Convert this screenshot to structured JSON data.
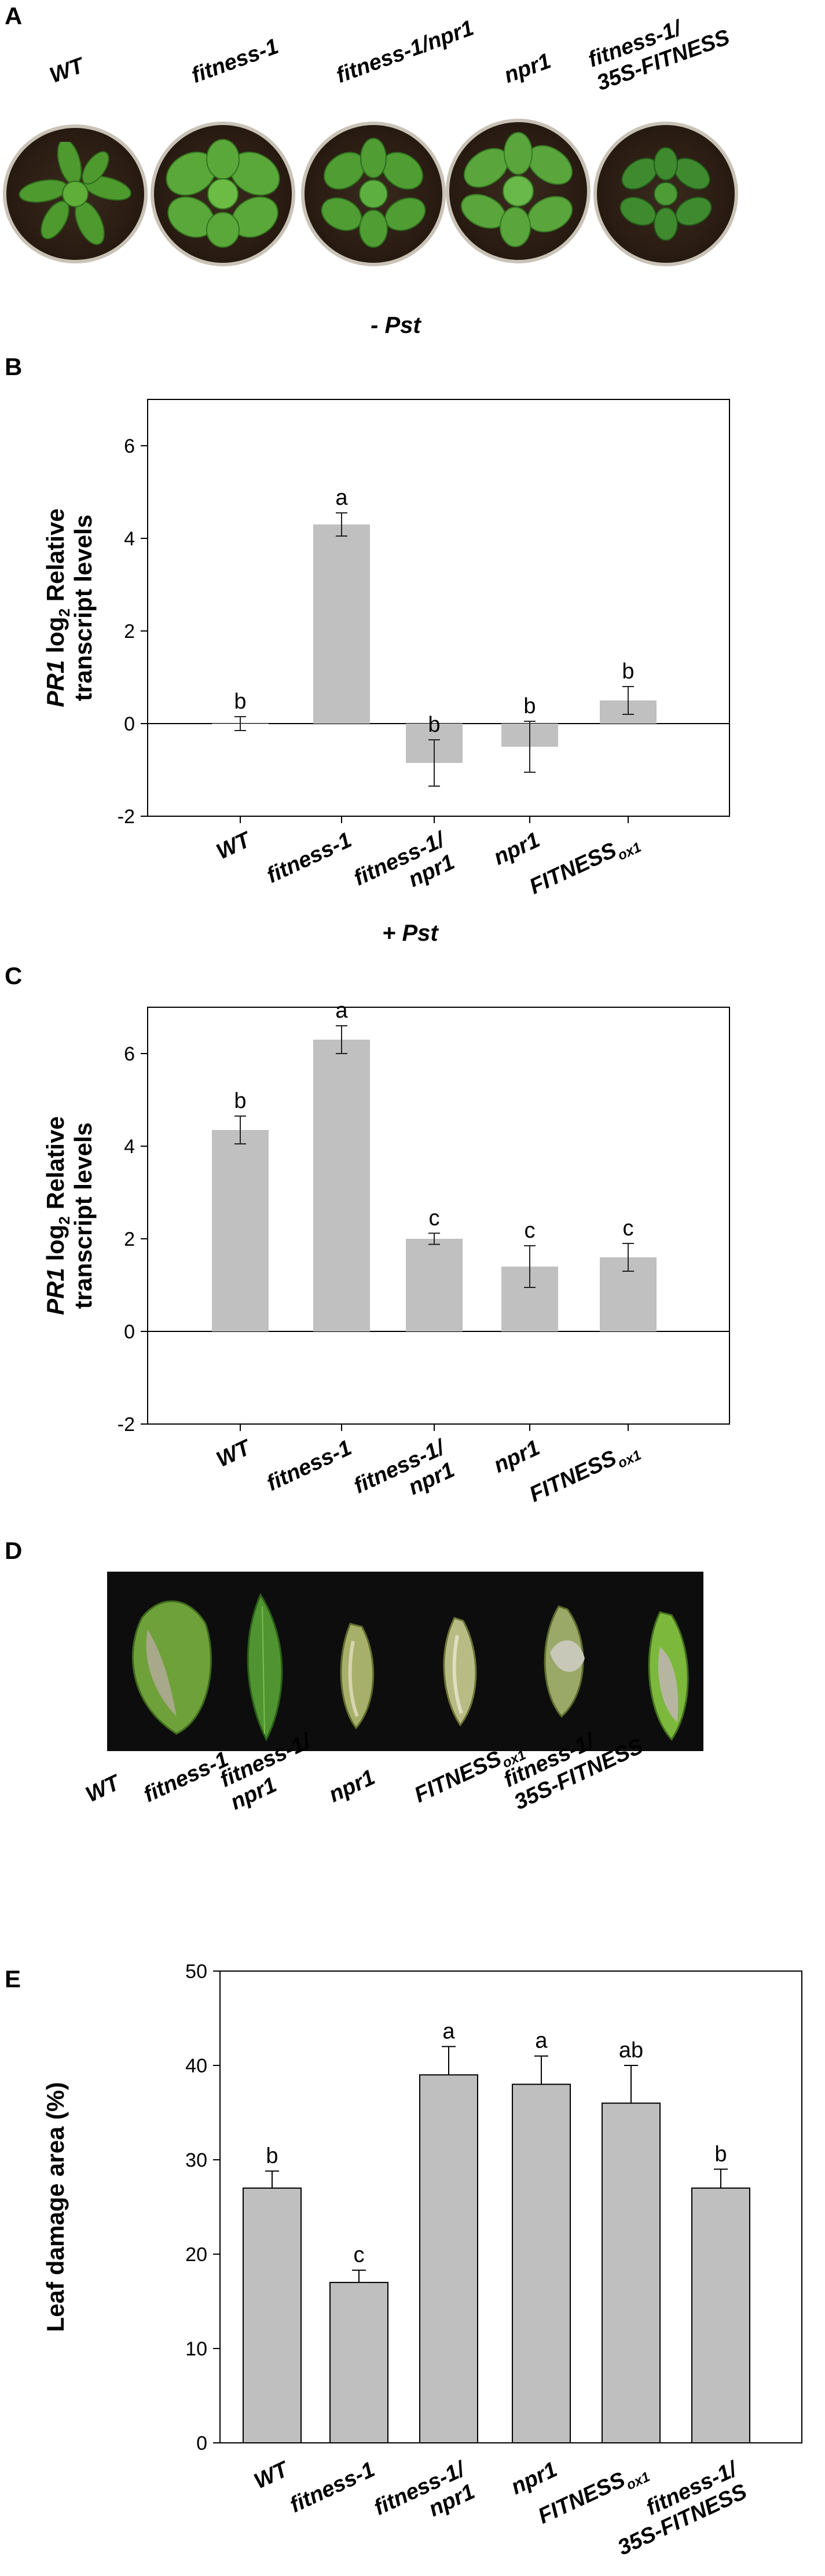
{
  "panel_a": {
    "label": "A",
    "genotypes": [
      {
        "name": "wt",
        "lines": [
          "WT"
        ]
      },
      {
        "name": "fitness-1",
        "lines": [
          "fitness-1"
        ]
      },
      {
        "name": "fitness-1-npr1",
        "lines": [
          "fitness-1/npr1"
        ]
      },
      {
        "name": "npr1",
        "lines": [
          "npr1"
        ]
      },
      {
        "name": "fitness-1-35s",
        "lines": [
          "fitness-1/",
          "35S-FITNESS"
        ]
      }
    ]
  },
  "panel_b": {
    "label": "B",
    "condition_prefix": "- ",
    "condition": "Pst",
    "ylabel_gene": "PR1",
    "ylabel_rest_1": " log",
    "ylabel_sub": "2",
    "ylabel_rest_2": " Relative",
    "ylabel_line2": "transcript levels",
    "chart_data": {
      "type": "bar",
      "categories": [
        "WT",
        "fitness-1",
        "fitness-1/npr1",
        "npr1",
        "FITNESSox1"
      ],
      "values": [
        0.0,
        4.3,
        -0.85,
        -0.5,
        0.5
      ],
      "errors": [
        0.15,
        0.25,
        0.5,
        0.55,
        0.3
      ],
      "letters": [
        "b",
        "a",
        "b",
        "b",
        "b"
      ],
      "ylim": [
        -2,
        7
      ],
      "yticks": [
        "-2",
        "0",
        "2",
        "4",
        "6"
      ]
    }
  },
  "panel_c": {
    "label": "C",
    "condition_prefix": "+ ",
    "condition": "Pst",
    "ylabel_gene": "PR1",
    "ylabel_rest_1": " log",
    "ylabel_sub": "2",
    "ylabel_rest_2": " Relative",
    "ylabel_line2": "transcript levels",
    "chart_data": {
      "type": "bar",
      "categories": [
        "WT",
        "fitness-1",
        "fitness-1/npr1",
        "npr1",
        "FITNESSox1"
      ],
      "values": [
        4.35,
        6.3,
        2.0,
        1.4,
        1.6
      ],
      "errors": [
        0.3,
        0.3,
        0.12,
        0.45,
        0.3
      ],
      "letters": [
        "b",
        "a",
        "c",
        "c",
        "c"
      ],
      "ylim": [
        -2,
        7
      ],
      "yticks": [
        "-2",
        "0",
        "2",
        "4",
        "6"
      ]
    }
  },
  "panel_d": {
    "label": "D",
    "genotypes": [
      {
        "name": "wt",
        "lines": [
          "WT"
        ],
        "sub": ""
      },
      {
        "name": "fitness-1",
        "lines": [
          "fitness-1"
        ],
        "sub": ""
      },
      {
        "name": "fitness-1-npr1",
        "lines": [
          "fitness-1/",
          "npr1"
        ],
        "sub": ""
      },
      {
        "name": "npr1",
        "lines": [
          "npr1"
        ],
        "sub": ""
      },
      {
        "name": "fitness-ox1",
        "lines": [
          "FITNESS"
        ],
        "sub": "ox1"
      },
      {
        "name": "fitness-1-35s",
        "lines": [
          "fitness-1/",
          "35S-FITNESS"
        ],
        "sub": ""
      }
    ]
  },
  "panel_e": {
    "label": "E",
    "ylabel": "Leaf damage area (%)",
    "chart_data": {
      "type": "bar",
      "categories": [
        "WT",
        "fitness-1",
        "fitness-1/npr1",
        "npr1",
        "FITNESSox1",
        "fitness-1/35S-FITNESS"
      ],
      "values": [
        27,
        17,
        39,
        38,
        36,
        27
      ],
      "errors": [
        1.8,
        1.3,
        3.0,
        3.0,
        4.0,
        2.0
      ],
      "letters": [
        "b",
        "c",
        "a",
        "a",
        "ab",
        "b"
      ],
      "ylim": [
        0,
        50
      ],
      "yticks": [
        "0",
        "10",
        "20",
        "30",
        "40",
        "50"
      ]
    }
  },
  "colors": {
    "bar_fill": "#c0c0c0",
    "bar_fill_e": "#bfbfbf",
    "leaf_bg": "#0d0d0d"
  }
}
